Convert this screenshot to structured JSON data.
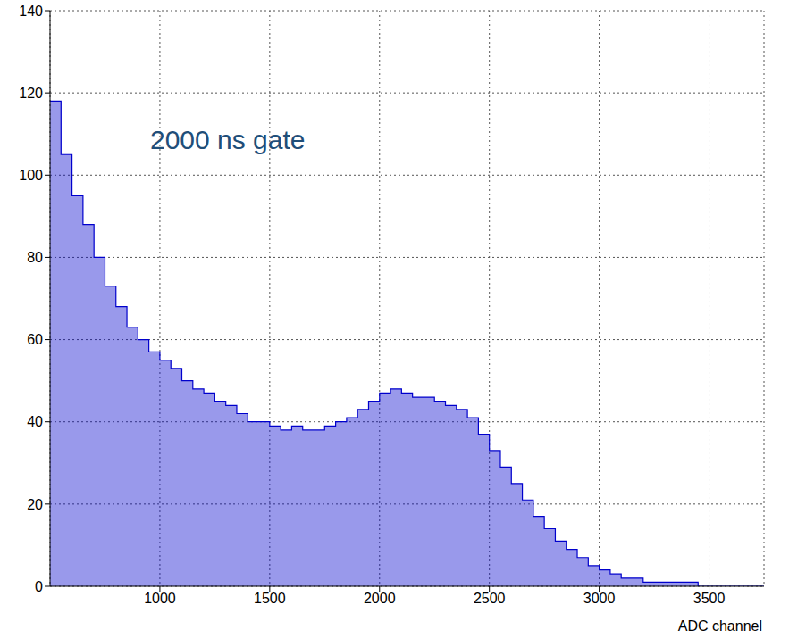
{
  "chart_data": {
    "type": "histogram",
    "annotation": "2000 ns gate",
    "xlabel": "ADC channel",
    "color": "#0000cc",
    "grid": true,
    "xlim": [
      500,
      3750
    ],
    "xticks": [
      1000,
      1500,
      2000,
      2500,
      3000,
      3500
    ],
    "ylim": [
      0,
      140
    ],
    "yticks": [
      0,
      20,
      40,
      60,
      80,
      100,
      120,
      140
    ],
    "bins": [
      500,
      550,
      600,
      650,
      700,
      750,
      800,
      850,
      900,
      950,
      1000,
      1050,
      1100,
      1150,
      1200,
      1250,
      1300,
      1350,
      1400,
      1450,
      1500,
      1550,
      1600,
      1650,
      1700,
      1750,
      1800,
      1850,
      1900,
      1950,
      2000,
      2050,
      2100,
      2150,
      2200,
      2250,
      2300,
      2350,
      2400,
      2450,
      2500,
      2550,
      2600,
      2650,
      2700,
      2750,
      2800,
      2850,
      2900,
      2950,
      3000,
      3050,
      3100,
      3150,
      3200,
      3250,
      3300,
      3350,
      3400,
      3450,
      3500,
      3550,
      3600,
      3650,
      3700,
      3750
    ],
    "counts": [
      118,
      105,
      95,
      88,
      80,
      73,
      68,
      63,
      60,
      57,
      55,
      53,
      50,
      48,
      47,
      45,
      44,
      42,
      40,
      40,
      39,
      38,
      39,
      38,
      38,
      39,
      40,
      41,
      43,
      45,
      47,
      48,
      47,
      46,
      46,
      45,
      44,
      43,
      41,
      37,
      33,
      29,
      25,
      21,
      17,
      14,
      11,
      9,
      7,
      5,
      4,
      3,
      2,
      2,
      1,
      1,
      1,
      1,
      1,
      0,
      0,
      0,
      0,
      0,
      0
    ]
  }
}
